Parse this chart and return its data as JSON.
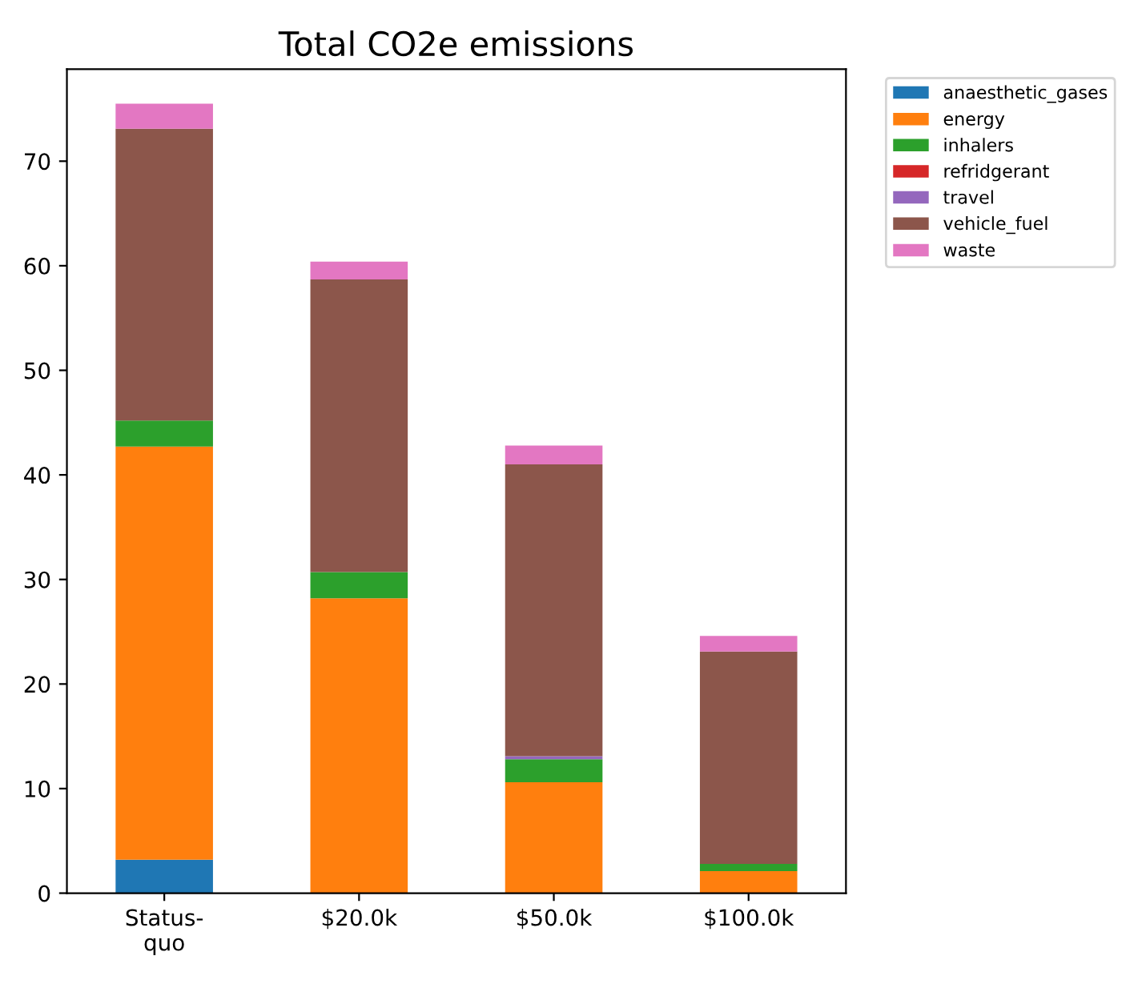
{
  "chart_data": {
    "type": "bar",
    "title": "Total CO2e emissions",
    "stacked": true,
    "categories": [
      "Status-\nquo",
      "$20.0k",
      "$50.0k",
      "$100.0k"
    ],
    "series": [
      {
        "name": "anaesthetic_gases",
        "color": "#1f77b4",
        "values": [
          3.2,
          0,
          0,
          0
        ]
      },
      {
        "name": "energy",
        "color": "#ff7f0e",
        "values": [
          39.5,
          28.2,
          10.6,
          2.1
        ]
      },
      {
        "name": "inhalers",
        "color": "#2ca02c",
        "values": [
          2.5,
          2.5,
          2.2,
          0.7
        ]
      },
      {
        "name": "refridgerant",
        "color": "#d62728",
        "values": [
          0,
          0,
          0,
          0
        ]
      },
      {
        "name": "travel",
        "color": "#9467bd",
        "values": [
          0,
          0,
          0.3,
          0
        ]
      },
      {
        "name": "vehicle_fuel",
        "color": "#8c564b",
        "values": [
          27.9,
          28.0,
          27.9,
          20.3
        ]
      },
      {
        "name": "waste",
        "color": "#e377c2",
        "values": [
          2.4,
          1.7,
          1.8,
          1.5
        ]
      }
    ],
    "ylim": [
      0,
      78.8
    ],
    "yticks": [
      0,
      10,
      20,
      30,
      40,
      50,
      60,
      70
    ],
    "grid": false,
    "legend": "top right"
  }
}
